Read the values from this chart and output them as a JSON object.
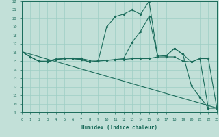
{
  "xlabel": "Humidex (Indice chaleur)",
  "xlim": [
    0,
    23
  ],
  "ylim": [
    9,
    22
  ],
  "xticks": [
    0,
    1,
    2,
    3,
    4,
    5,
    6,
    7,
    8,
    9,
    10,
    11,
    12,
    13,
    14,
    15,
    16,
    17,
    18,
    19,
    20,
    21,
    22,
    23
  ],
  "yticks": [
    9,
    10,
    11,
    12,
    13,
    14,
    15,
    16,
    17,
    18,
    19,
    20,
    21,
    22
  ],
  "bg_color": "#c2e0d8",
  "line_color": "#1a6b5a",
  "grid_color": "#9ecec4",
  "line1_x": [
    0,
    1,
    2,
    3,
    4,
    5,
    6,
    7,
    8,
    9,
    10,
    11,
    12,
    13,
    14,
    15,
    16,
    17,
    18,
    19,
    20,
    21,
    22,
    23
  ],
  "line1_y": [
    16.1,
    15.5,
    15.0,
    15.0,
    15.25,
    15.3,
    15.3,
    15.3,
    15.1,
    15.1,
    15.1,
    15.15,
    15.2,
    15.3,
    15.3,
    15.3,
    15.5,
    15.5,
    15.5,
    15.0,
    14.9,
    15.3,
    15.3,
    9.5
  ],
  "line2_x": [
    0,
    1,
    2,
    3,
    4,
    5,
    6,
    7,
    8,
    9,
    10,
    11,
    12,
    13,
    14,
    15,
    16,
    17,
    18,
    19,
    20,
    21,
    22,
    23
  ],
  "line2_y": [
    16.1,
    15.5,
    15.0,
    14.9,
    15.2,
    15.3,
    15.3,
    15.2,
    14.9,
    15.0,
    19.0,
    20.2,
    20.5,
    21.0,
    20.5,
    22.0,
    15.7,
    15.6,
    16.5,
    15.8,
    12.1,
    10.8,
    9.5,
    9.5
  ],
  "line3_x": [
    0,
    1,
    2,
    3,
    4,
    5,
    6,
    7,
    8,
    9,
    10,
    11,
    12,
    13,
    14,
    15,
    16,
    17,
    18,
    19,
    20,
    21,
    22,
    23
  ],
  "line3_y": [
    16.1,
    15.5,
    15.0,
    14.9,
    15.2,
    15.3,
    15.3,
    15.2,
    14.9,
    15.0,
    15.1,
    15.2,
    15.3,
    17.2,
    18.5,
    20.2,
    15.7,
    15.6,
    16.5,
    15.8,
    14.9,
    15.3,
    9.5,
    9.5
  ],
  "line4_x": [
    0,
    23
  ],
  "line4_y": [
    16.1,
    9.5
  ]
}
